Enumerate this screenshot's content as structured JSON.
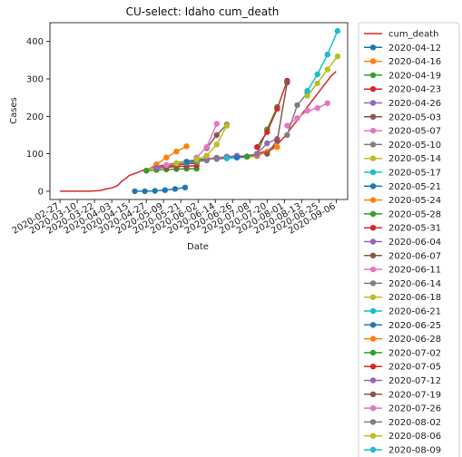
{
  "chart_data": {
    "type": "line",
    "title": "CU-select: Idaho cum_death",
    "xlabel": "Date",
    "ylabel": "Cases",
    "x_range": [
      "2020-02-20",
      "2020-09-14"
    ],
    "ylim": [
      -22,
      450
    ],
    "y_ticks": [
      0,
      100,
      200,
      300,
      400
    ],
    "x_ticks": [
      "2020-02-27",
      "2020-03-10",
      "2020-03-22",
      "2020-04-03",
      "2020-04-15",
      "2020-04-27",
      "2020-05-09",
      "2020-05-21",
      "2020-06-02",
      "2020-06-14",
      "2020-06-26",
      "2020-07-08",
      "2020-07-20",
      "2020-08-01",
      "2020-08-13",
      "2020-08-25",
      "2020-09-06"
    ],
    "grid": false,
    "legend_position": "outside-right",
    "cum_death": {
      "name": "cum_death",
      "color": "#d62728",
      "points": [
        [
          "2020-02-27",
          0
        ],
        [
          "2020-03-05",
          0
        ],
        [
          "2020-03-12",
          0
        ],
        [
          "2020-03-19",
          0
        ],
        [
          "2020-03-26",
          2
        ],
        [
          "2020-03-30",
          6
        ],
        [
          "2020-04-03",
          9
        ],
        [
          "2020-04-07",
          15
        ],
        [
          "2020-04-10",
          27
        ],
        [
          "2020-04-13",
          35
        ],
        [
          "2020-04-15",
          42
        ],
        [
          "2020-04-18",
          46
        ],
        [
          "2020-04-21",
          50
        ],
        [
          "2020-04-24",
          55
        ],
        [
          "2020-04-27",
          58
        ],
        [
          "2020-05-01",
          62
        ],
        [
          "2020-05-05",
          66
        ],
        [
          "2020-05-09",
          69
        ],
        [
          "2020-05-13",
          72
        ],
        [
          "2020-05-17",
          75
        ],
        [
          "2020-05-21",
          78
        ],
        [
          "2020-05-25",
          80
        ],
        [
          "2020-05-29",
          82
        ],
        [
          "2020-06-02",
          84
        ],
        [
          "2020-06-06",
          86
        ],
        [
          "2020-06-10",
          87
        ],
        [
          "2020-06-14",
          88
        ],
        [
          "2020-06-18",
          89
        ],
        [
          "2020-06-22",
          90
        ],
        [
          "2020-06-26",
          92
        ],
        [
          "2020-06-30",
          93
        ],
        [
          "2020-07-04",
          94
        ],
        [
          "2020-07-08",
          96
        ],
        [
          "2020-07-12",
          98
        ],
        [
          "2020-07-16",
          103
        ],
        [
          "2020-07-20",
          108
        ],
        [
          "2020-07-24",
          116
        ],
        [
          "2020-07-28",
          128
        ],
        [
          "2020-08-01",
          145
        ],
        [
          "2020-08-05",
          165
        ],
        [
          "2020-08-09",
          185
        ],
        [
          "2020-08-13",
          205
        ],
        [
          "2020-08-17",
          225
        ],
        [
          "2020-08-21",
          245
        ],
        [
          "2020-08-25",
          265
        ],
        [
          "2020-08-29",
          285
        ],
        [
          "2020-09-02",
          305
        ],
        [
          "2020-09-06",
          320
        ]
      ]
    },
    "series": [
      {
        "name": "2020-04-12",
        "color": "#1f77b4",
        "x": [
          "2020-04-19",
          "2020-04-26",
          "2020-05-03",
          "2020-05-10",
          "2020-05-17",
          "2020-05-24"
        ],
        "values": [
          0,
          0,
          1,
          3,
          6,
          10
        ]
      },
      {
        "name": "2020-04-16",
        "color": "#ff7f0e",
        "x": [
          "2020-04-27",
          "2020-05-04",
          "2020-05-11",
          "2020-05-18",
          "2020-05-25"
        ],
        "values": [
          55,
          72,
          90,
          106,
          120
        ]
      },
      {
        "name": "2020-04-19",
        "color": "#2ca02c",
        "x": [
          "2020-04-27",
          "2020-05-04",
          "2020-05-11",
          "2020-05-18",
          "2020-05-25",
          "2020-06-01"
        ],
        "values": [
          55,
          57,
          58,
          59,
          60,
          60
        ]
      },
      {
        "name": "2020-04-23",
        "color": "#d62728",
        "x": [
          "2020-05-04",
          "2020-05-11",
          "2020-05-18",
          "2020-05-25",
          "2020-06-01"
        ],
        "values": [
          62,
          64,
          66,
          67,
          68
        ]
      },
      {
        "name": "2020-04-26",
        "color": "#9467bd",
        "x": [
          "2020-05-04",
          "2020-05-11",
          "2020-05-18",
          "2020-05-25",
          "2020-06-01"
        ],
        "values": [
          63,
          67,
          71,
          74,
          77
        ]
      },
      {
        "name": "2020-05-03",
        "color": "#8c564b",
        "x": [
          "2020-05-11",
          "2020-05-18",
          "2020-05-25",
          "2020-06-01"
        ],
        "values": [
          67,
          70,
          73,
          75
        ]
      },
      {
        "name": "2020-05-07",
        "color": "#e377c2",
        "x": [
          "2020-05-11",
          "2020-05-18",
          "2020-05-25",
          "2020-06-01"
        ],
        "values": [
          70,
          73,
          76,
          79
        ]
      },
      {
        "name": "2020-05-10",
        "color": "#7f7f7f",
        "x": [
          "2020-05-18",
          "2020-05-25",
          "2020-06-01",
          "2020-06-08"
        ],
        "values": [
          73,
          76,
          79,
          82
        ]
      },
      {
        "name": "2020-05-14",
        "color": "#bcbd22",
        "x": [
          "2020-05-18",
          "2020-05-25",
          "2020-06-01",
          "2020-06-08"
        ],
        "values": [
          75,
          79,
          82,
          85
        ]
      },
      {
        "name": "2020-05-17",
        "color": "#17becf",
        "x": [
          "2020-05-25",
          "2020-06-01",
          "2020-06-08"
        ],
        "values": [
          78,
          81,
          84
        ]
      },
      {
        "name": "2020-05-21",
        "color": "#1f77b4",
        "x": [
          "2020-05-25",
          "2020-06-01",
          "2020-06-08",
          "2020-06-15"
        ],
        "values": [
          79,
          82,
          85,
          88
        ]
      },
      {
        "name": "2020-05-24",
        "color": "#ff7f0e",
        "x": [
          "2020-06-01",
          "2020-06-08",
          "2020-06-15"
        ],
        "values": [
          82,
          85,
          88
        ]
      },
      {
        "name": "2020-05-28",
        "color": "#2ca02c",
        "x": [
          "2020-06-01",
          "2020-06-08",
          "2020-06-15",
          "2020-06-22"
        ],
        "values": [
          83,
          86,
          89,
          91
        ]
      },
      {
        "name": "2020-05-31",
        "color": "#d62728",
        "x": [
          "2020-06-08",
          "2020-06-15",
          "2020-06-22"
        ],
        "values": [
          86,
          89,
          92
        ]
      },
      {
        "name": "2020-06-04",
        "color": "#9467bd",
        "x": [
          "2020-06-08",
          "2020-06-15",
          "2020-06-22",
          "2020-06-29"
        ],
        "values": [
          86,
          89,
          92,
          95
        ]
      },
      {
        "name": "2020-06-07",
        "color": "#8c564b",
        "x": [
          "2020-06-08",
          "2020-06-15",
          "2020-06-22"
        ],
        "values": [
          115,
          150,
          178
        ]
      },
      {
        "name": "2020-06-11",
        "color": "#e377c2",
        "x": [
          "2020-06-01",
          "2020-06-08",
          "2020-06-15"
        ],
        "values": [
          90,
          118,
          180
        ]
      },
      {
        "name": "2020-06-14",
        "color": "#7f7f7f",
        "x": [
          "2020-06-15",
          "2020-06-22",
          "2020-06-29"
        ],
        "values": [
          86,
          88,
          90
        ]
      },
      {
        "name": "2020-06-18",
        "color": "#bcbd22",
        "x": [
          "2020-06-01",
          "2020-06-08",
          "2020-06-15",
          "2020-06-22"
        ],
        "values": [
          85,
          95,
          125,
          175
        ]
      },
      {
        "name": "2020-06-21",
        "color": "#17becf",
        "x": [
          "2020-06-22",
          "2020-06-29",
          "2020-07-06"
        ],
        "values": [
          88,
          90,
          92
        ]
      },
      {
        "name": "2020-06-25",
        "color": "#1f77b4",
        "x": [
          "2020-06-29",
          "2020-07-06",
          "2020-07-13"
        ],
        "values": [
          90,
          92,
          94
        ]
      },
      {
        "name": "2020-06-28",
        "color": "#ff7f0e",
        "x": [
          "2020-07-06",
          "2020-07-13",
          "2020-07-20",
          "2020-07-27"
        ],
        "values": [
          92,
          95,
          105,
          118
        ]
      },
      {
        "name": "2020-07-02",
        "color": "#2ca02c",
        "x": [
          "2020-07-06",
          "2020-07-13",
          "2020-07-20",
          "2020-07-27"
        ],
        "values": [
          93,
          100,
          165,
          225
        ]
      },
      {
        "name": "2020-07-05",
        "color": "#d62728",
        "x": [
          "2020-07-13",
          "2020-07-20",
          "2020-07-27",
          "2020-08-03"
        ],
        "values": [
          118,
          158,
          220,
          295
        ]
      },
      {
        "name": "2020-07-12",
        "color": "#9467bd",
        "x": [
          "2020-07-13",
          "2020-07-20",
          "2020-07-27"
        ],
        "values": [
          100,
          128,
          140
        ]
      },
      {
        "name": "2020-07-19",
        "color": "#8c564b",
        "x": [
          "2020-07-20",
          "2020-07-27",
          "2020-08-03"
        ],
        "values": [
          100,
          135,
          290
        ]
      },
      {
        "name": "2020-07-26",
        "color": "#e377c2",
        "x": [
          "2020-08-03",
          "2020-08-10",
          "2020-08-17",
          "2020-08-24",
          "2020-08-31"
        ],
        "values": [
          175,
          195,
          215,
          222,
          235
        ]
      },
      {
        "name": "2020-08-02",
        "color": "#7f7f7f",
        "x": [
          "2020-08-03",
          "2020-08-10",
          "2020-08-17"
        ],
        "values": [
          150,
          230,
          262
        ]
      },
      {
        "name": "2020-08-06",
        "color": "#bcbd22",
        "x": [
          "2020-08-17",
          "2020-08-24",
          "2020-08-31",
          "2020-09-07"
        ],
        "values": [
          255,
          288,
          325,
          360
        ]
      },
      {
        "name": "2020-08-09",
        "color": "#17becf",
        "x": [
          "2020-08-17",
          "2020-08-24",
          "2020-08-31",
          "2020-09-07"
        ],
        "values": [
          268,
          312,
          365,
          428
        ]
      }
    ]
  }
}
